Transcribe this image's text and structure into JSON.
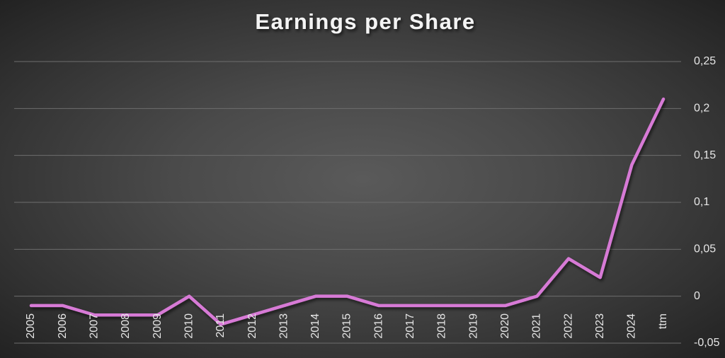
{
  "chart_data": {
    "type": "line",
    "title": "Earnings per Share",
    "categories": [
      "2005",
      "2006",
      "2007",
      "2008",
      "2009",
      "2010",
      "2011",
      "2012",
      "2013",
      "2014",
      "2015",
      "2016",
      "2017",
      "2018",
      "2019",
      "2020",
      "2021",
      "2022",
      "2023",
      "2024",
      "ttm"
    ],
    "series": [
      {
        "name": "Earnings per Share",
        "color": "#d77ad6",
        "values": [
          -0.01,
          -0.01,
          -0.02,
          -0.02,
          -0.02,
          0,
          -0.03,
          -0.02,
          -0.01,
          0,
          0,
          -0.01,
          -0.01,
          -0.01,
          -0.01,
          -0.01,
          0,
          0.04,
          0.02,
          0.14,
          0.21
        ]
      }
    ],
    "ylim": [
      -0.05,
      0.25
    ],
    "yticks": [
      {
        "value": -0.05,
        "label": "-0,05"
      },
      0,
      {
        "value": 0.05,
        "label": "0,05"
      },
      {
        "value": 0.1,
        "label": "0,1"
      },
      {
        "value": 0.15,
        "label": "0,15"
      },
      {
        "value": 0.2,
        "label": "0,2"
      },
      {
        "value": 0.25,
        "label": "0,25"
      }
    ],
    "grid": true
  }
}
